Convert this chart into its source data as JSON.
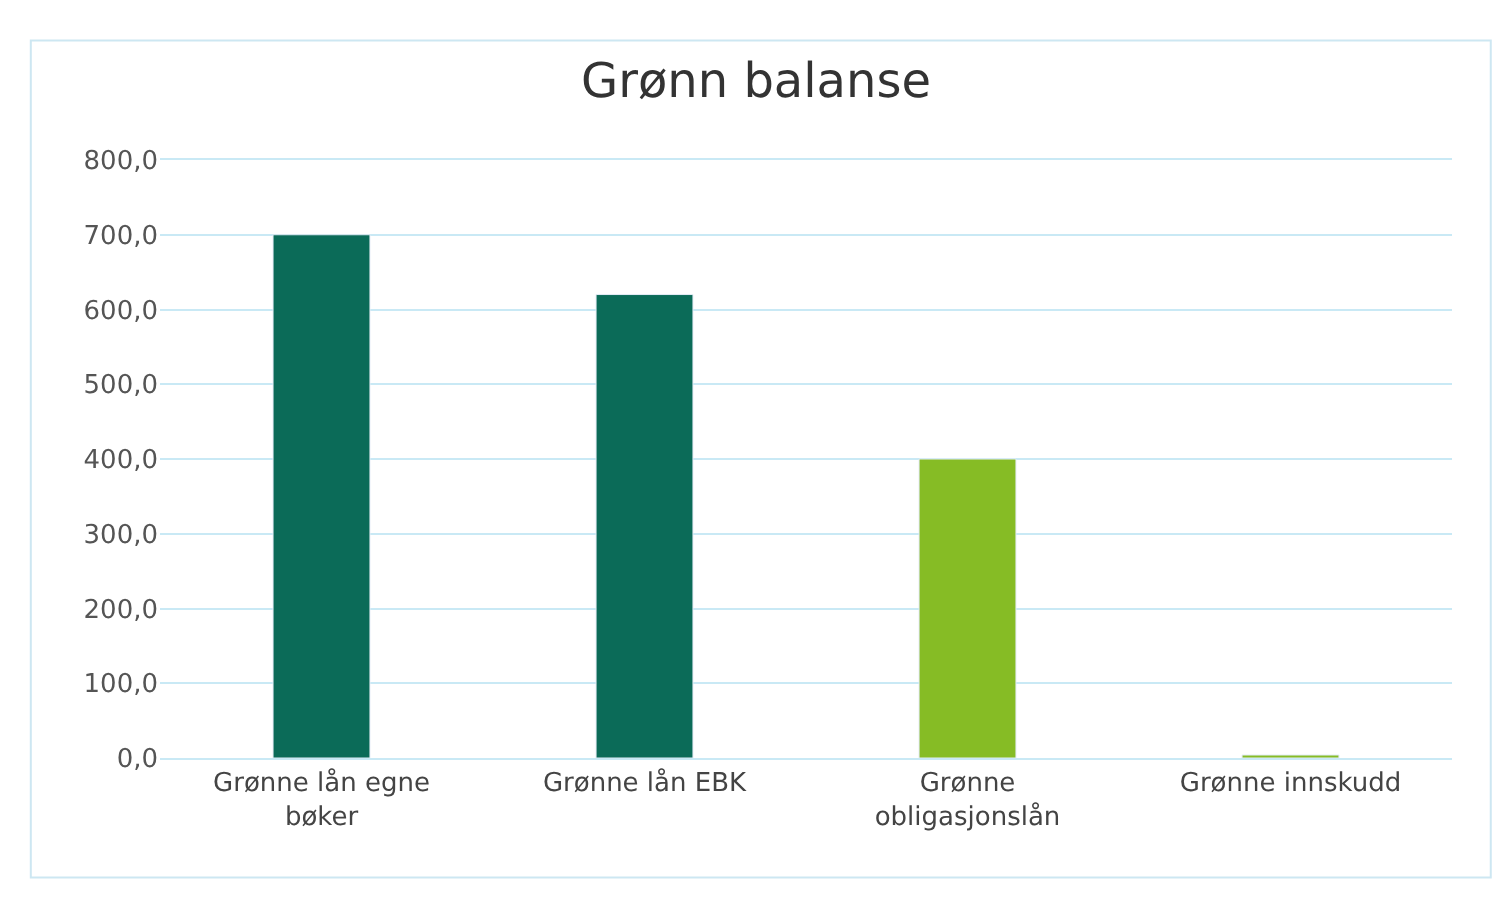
{
  "chart_data": {
    "type": "bar",
    "title": "Grønn balanse",
    "categories": [
      "Grønne lån egne bøker",
      "Grønne lån EBK",
      "Grønne obligasjonslån",
      "Grønne innskudd"
    ],
    "values": [
      700,
      620,
      400,
      4
    ],
    "colors": [
      "#0b6b58",
      "#0b6b58",
      "#86bc25",
      "#86bc25"
    ],
    "ylim": [
      0,
      800
    ],
    "yticks": [
      {
        "value": 0,
        "label": "0,0"
      },
      {
        "value": 100,
        "label": "100,0"
      },
      {
        "value": 200,
        "label": "200,0"
      },
      {
        "value": 300,
        "label": "300,0"
      },
      {
        "value": 400,
        "label": "400,0"
      },
      {
        "value": 500,
        "label": "500,0"
      },
      {
        "value": 600,
        "label": "600,0"
      },
      {
        "value": 700,
        "label": "700,0"
      },
      {
        "value": 800,
        "label": "800,0"
      }
    ],
    "grid": "y"
  }
}
